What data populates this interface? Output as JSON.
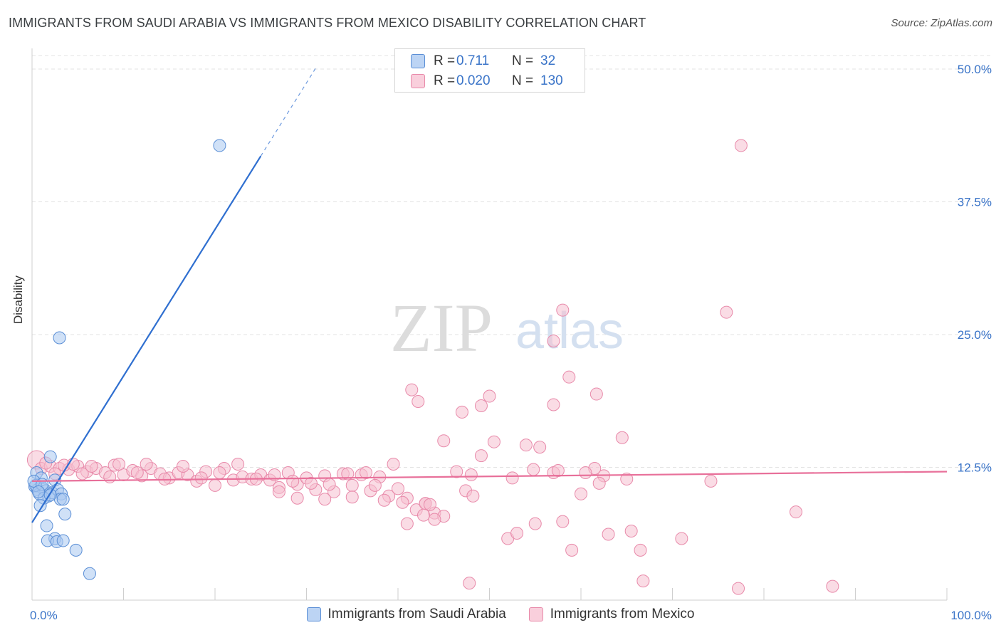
{
  "header": {
    "title": "IMMIGRANTS FROM SAUDI ARABIA VS IMMIGRANTS FROM MEXICO DISABILITY CORRELATION CHART",
    "source": "Source: ZipAtlas.com"
  },
  "watermark": {
    "zip": "ZIP",
    "atlas": "atlas"
  },
  "legend": {
    "series1": {
      "r_label": "R =",
      "r_value": "0.711",
      "n_label": "N =",
      "n_value": "32"
    },
    "series2": {
      "r_label": "R =",
      "r_value": "0.020",
      "n_label": "N =",
      "n_value": "130"
    }
  },
  "colors": {
    "blue_fill": "#a9c8f0",
    "blue_stroke": "#5b8fd6",
    "blue_line": "#2f6fd0",
    "pink_fill": "#f6bfd0",
    "pink_stroke": "#e88aaa",
    "pink_line": "#e8709a",
    "tick_text": "#3a74c8",
    "grid": "#e3e3e3"
  },
  "chart_data": {
    "type": "scatter",
    "title": "IMMIGRANTS FROM SAUDI ARABIA VS IMMIGRANTS FROM MEXICO DISABILITY CORRELATION CHART",
    "xlabel": "",
    "ylabel": "Disability",
    "xlim": [
      0,
      100
    ],
    "ylim": [
      0,
      52.5
    ],
    "x_tick_labels": [
      "0.0%",
      "100.0%"
    ],
    "y_ticks": [
      12.5,
      25.0,
      37.5,
      50.0
    ],
    "y_tick_labels": [
      "12.5%",
      "25.0%",
      "37.5%",
      "50.0%"
    ],
    "grid": true,
    "series": [
      {
        "name": "Immigrants from Saudi Arabia",
        "color": "blue",
        "trend": {
          "x0": 0.0,
          "y0": 7.3,
          "x1": 25.0,
          "y1": 41.8,
          "dashed_to_x": 31.0
        },
        "points": [
          [
            20.5,
            42.8
          ],
          [
            3.0,
            24.7
          ],
          [
            2.0,
            13.5
          ],
          [
            0.5,
            12.0
          ],
          [
            1.0,
            11.5
          ],
          [
            2.5,
            11.3
          ],
          [
            0.3,
            10.7
          ],
          [
            0.6,
            10.4
          ],
          [
            1.2,
            10.5
          ],
          [
            1.5,
            10.3
          ],
          [
            0.8,
            10.0
          ],
          [
            1.8,
            9.8
          ],
          [
            2.2,
            10.1
          ],
          [
            2.8,
            10.4
          ],
          [
            3.2,
            10.0
          ],
          [
            1.3,
            9.6
          ],
          [
            3.1,
            9.5
          ],
          [
            3.4,
            9.5
          ],
          [
            0.9,
            8.9
          ],
          [
            3.6,
            8.1
          ],
          [
            1.6,
            7.0
          ],
          [
            2.5,
            5.8
          ],
          [
            1.7,
            5.6
          ],
          [
            2.7,
            5.5
          ],
          [
            3.4,
            5.6
          ],
          [
            4.8,
            4.7
          ],
          [
            6.3,
            2.5
          ],
          [
            0.4,
            10.8
          ],
          [
            0.2,
            11.2
          ],
          [
            1.1,
            10.9
          ],
          [
            2.0,
            9.9
          ],
          [
            0.7,
            10.2
          ]
        ]
      },
      {
        "name": "Immigrants from Mexico",
        "color": "pink",
        "trend": {
          "x0": 0.0,
          "y0": 11.2,
          "x1": 100.0,
          "y1": 12.1
        },
        "points": [
          [
            77.5,
            42.8
          ],
          [
            57.0,
            24.4
          ],
          [
            75.9,
            27.1
          ],
          [
            58.0,
            27.3
          ],
          [
            58.7,
            21.0
          ],
          [
            41.5,
            19.8
          ],
          [
            42.2,
            18.7
          ],
          [
            50.0,
            19.2
          ],
          [
            47.0,
            17.7
          ],
          [
            49.1,
            18.3
          ],
          [
            57.0,
            18.4
          ],
          [
            61.7,
            19.4
          ],
          [
            45.0,
            15.0
          ],
          [
            50.5,
            14.9
          ],
          [
            54.0,
            14.6
          ],
          [
            55.5,
            14.4
          ],
          [
            64.5,
            15.3
          ],
          [
            46.4,
            12.1
          ],
          [
            49.1,
            13.6
          ],
          [
            54.8,
            12.3
          ],
          [
            57.0,
            12.0
          ],
          [
            57.5,
            12.2
          ],
          [
            62.5,
            11.7
          ],
          [
            65.0,
            11.4
          ],
          [
            61.5,
            12.4
          ],
          [
            74.2,
            11.2
          ],
          [
            0.5,
            13.2
          ],
          [
            1.0,
            12.4
          ],
          [
            2.0,
            12.6
          ],
          [
            3.0,
            12.4
          ],
          [
            4.0,
            12.3
          ],
          [
            5.0,
            12.6
          ],
          [
            6.0,
            12.1
          ],
          [
            7.0,
            12.4
          ],
          [
            8.0,
            12.0
          ],
          [
            9.0,
            12.7
          ],
          [
            10.0,
            11.8
          ],
          [
            11.0,
            12.2
          ],
          [
            12.0,
            11.7
          ],
          [
            13.0,
            12.4
          ],
          [
            14.0,
            11.9
          ],
          [
            15.0,
            11.5
          ],
          [
            16.0,
            12.0
          ],
          [
            17.0,
            11.8
          ],
          [
            18.0,
            11.2
          ],
          [
            19.0,
            12.1
          ],
          [
            20.0,
            10.8
          ],
          [
            21.0,
            12.4
          ],
          [
            22.0,
            11.3
          ],
          [
            23.0,
            11.6
          ],
          [
            24.0,
            11.4
          ],
          [
            25.0,
            11.8
          ],
          [
            26.0,
            11.3
          ],
          [
            27.0,
            10.6
          ],
          [
            28.0,
            12.0
          ],
          [
            29.0,
            10.9
          ],
          [
            30.0,
            11.5
          ],
          [
            31.0,
            10.4
          ],
          [
            32.0,
            11.7
          ],
          [
            33.0,
            10.2
          ],
          [
            34.0,
            11.9
          ],
          [
            35.0,
            10.8
          ],
          [
            36.0,
            11.8
          ],
          [
            37.0,
            10.3
          ],
          [
            38.0,
            11.6
          ],
          [
            39.0,
            9.8
          ],
          [
            40.0,
            10.5
          ],
          [
            41.0,
            9.6
          ],
          [
            42.0,
            8.5
          ],
          [
            43.0,
            9.1
          ],
          [
            44.0,
            8.2
          ],
          [
            45.0,
            7.9
          ],
          [
            47.4,
            10.3
          ],
          [
            48.2,
            9.8
          ],
          [
            52.0,
            5.8
          ],
          [
            53.0,
            6.3
          ],
          [
            55.0,
            7.2
          ],
          [
            59.0,
            4.7
          ],
          [
            58.0,
            7.4
          ],
          [
            63.0,
            6.2
          ],
          [
            65.5,
            6.5
          ],
          [
            66.5,
            4.7
          ],
          [
            71.0,
            5.8
          ],
          [
            83.5,
            8.3
          ],
          [
            66.8,
            1.8
          ],
          [
            77.2,
            1.1
          ],
          [
            87.5,
            1.3
          ],
          [
            47.8,
            1.6
          ],
          [
            1.5,
            12.9
          ],
          [
            2.5,
            11.9
          ],
          [
            3.5,
            12.7
          ],
          [
            4.5,
            12.8
          ],
          [
            5.5,
            11.9
          ],
          [
            6.5,
            12.6
          ],
          [
            8.5,
            11.6
          ],
          [
            9.5,
            12.8
          ],
          [
            11.5,
            12.0
          ],
          [
            12.5,
            12.8
          ],
          [
            14.5,
            11.4
          ],
          [
            16.5,
            12.6
          ],
          [
            18.5,
            11.5
          ],
          [
            20.5,
            12.0
          ],
          [
            22.5,
            12.8
          ],
          [
            24.5,
            11.4
          ],
          [
            26.5,
            11.8
          ],
          [
            28.5,
            11.2
          ],
          [
            30.5,
            11.0
          ],
          [
            32.5,
            10.9
          ],
          [
            34.5,
            11.9
          ],
          [
            36.5,
            12.0
          ],
          [
            38.5,
            9.4
          ],
          [
            40.5,
            9.2
          ],
          [
            43.0,
            9.1
          ],
          [
            39.5,
            12.8
          ],
          [
            35.0,
            9.7
          ],
          [
            32.0,
            9.5
          ],
          [
            29.0,
            9.6
          ],
          [
            27.0,
            10.2
          ],
          [
            60.5,
            12.0
          ],
          [
            62.0,
            11.0
          ],
          [
            60.0,
            10.0
          ],
          [
            52.5,
            11.5
          ],
          [
            48.0,
            11.8
          ],
          [
            44.0,
            7.6
          ],
          [
            41.0,
            7.2
          ],
          [
            43.5,
            9.0
          ],
          [
            42.8,
            8.0
          ],
          [
            37.5,
            10.8
          ]
        ]
      }
    ],
    "legend": [
      "Immigrants from Saudi Arabia",
      "Immigrants from Mexico"
    ]
  }
}
